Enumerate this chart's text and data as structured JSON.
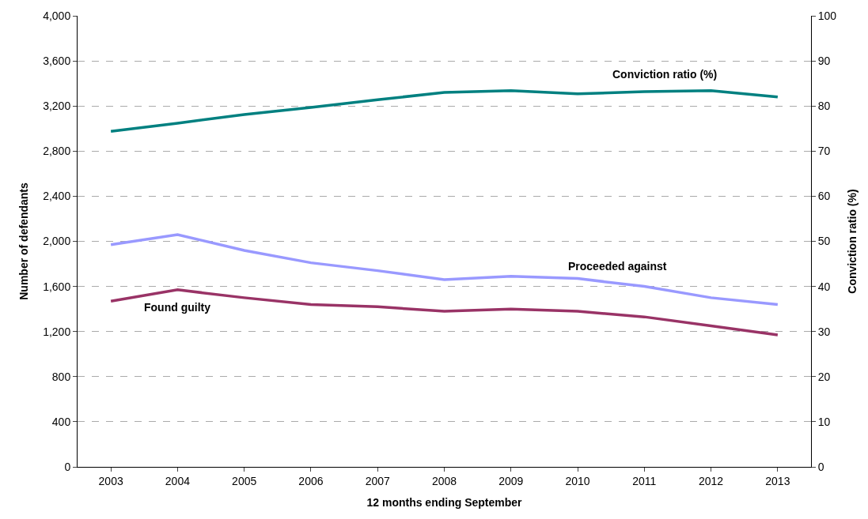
{
  "chart_data": {
    "type": "line",
    "xlabel": "12 months ending September",
    "ylabel": "Number of defendants",
    "y2label": "Conviction ratio (%)",
    "categories": [
      "2003",
      "2004",
      "2005",
      "2006",
      "2007",
      "2008",
      "2009",
      "2010",
      "2011",
      "2012",
      "2013"
    ],
    "series": [
      {
        "name": "Conviction ratio (%)",
        "color": "#008080",
        "axis": "y2",
        "values": [
          74.4,
          76.2,
          78.1,
          79.7,
          81.4,
          83.0,
          83.4,
          82.7,
          83.2,
          83.4,
          82.0
        ]
      },
      {
        "name": "Proceeded against",
        "color": "#9999ff",
        "values": [
          1970,
          2060,
          1920,
          1810,
          1740,
          1660,
          1690,
          1670,
          1600,
          1500,
          1440
        ]
      },
      {
        "name": "Found guilty",
        "color": "#993366",
        "values": [
          1470,
          1570,
          1500,
          1440,
          1420,
          1380,
          1400,
          1380,
          1330,
          1250,
          1170
        ]
      }
    ],
    "ylim": [
      0,
      4000
    ],
    "yticks": [
      0,
      400,
      800,
      {
        "value": 1200,
        "label": "1,200"
      },
      {
        "value": 1600,
        "label": "1,600"
      },
      {
        "value": 2000,
        "label": "2,000"
      },
      {
        "value": 2400,
        "label": "2,400"
      },
      {
        "value": 2800,
        "label": "2,800"
      },
      {
        "value": 3200,
        "label": "3,200"
      },
      {
        "value": 3600,
        "label": "3,600"
      },
      {
        "value": 4000,
        "label": "4,000"
      }
    ],
    "y2lim": [
      0,
      100
    ],
    "y2ticks": [
      0,
      10,
      20,
      30,
      40,
      50,
      60,
      70,
      80,
      90,
      100
    ],
    "grid": "y",
    "marker": "none",
    "line_style": "solid"
  }
}
